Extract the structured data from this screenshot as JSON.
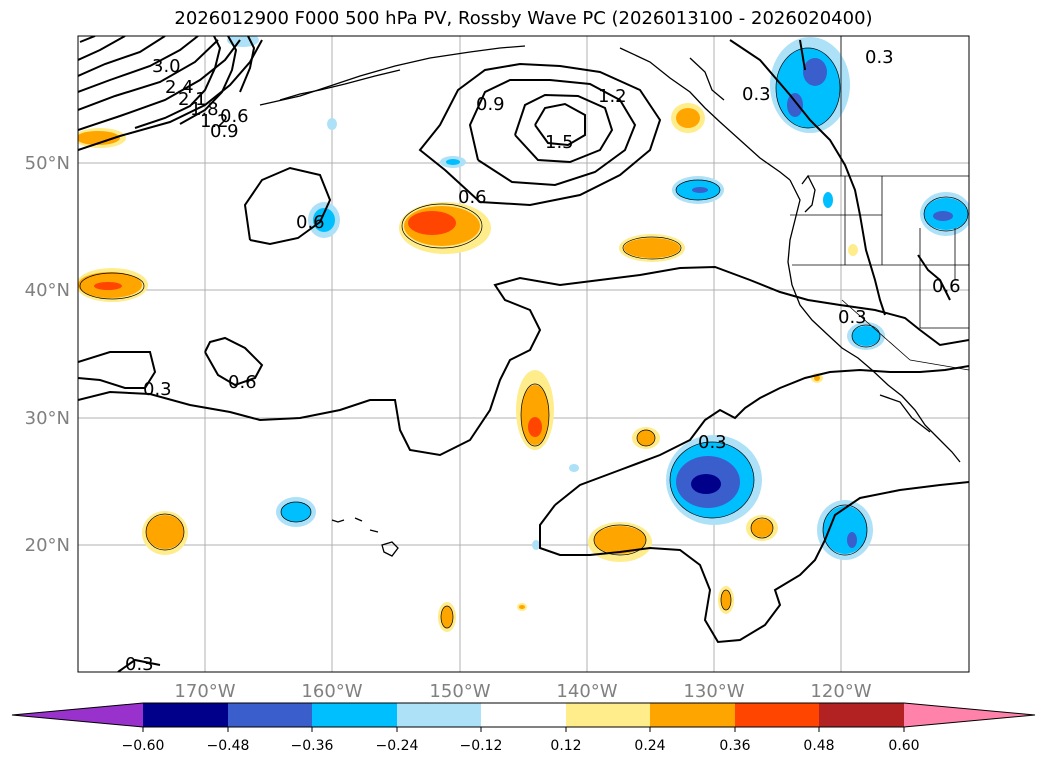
{
  "title": "2026012900 F000 500 hPa PV, Rossby Wave PC (2026013100 - 2026020400)",
  "latitude_labels": [
    "50°N",
    "40°N",
    "30°N",
    "20°N"
  ],
  "longitude_labels": [
    "170°W",
    "160°W",
    "150°W",
    "140°W",
    "130°W",
    "120°W"
  ],
  "colorbar": {
    "ticks": [
      "−0.60",
      "−0.48",
      "−0.36",
      "−0.24",
      "−0.12",
      "0.12",
      "0.24",
      "0.36",
      "0.48",
      "0.60"
    ],
    "colors": [
      "#9932CC",
      "#00008B",
      "#3A5FCD",
      "#00BFFF",
      "#ADE1F7",
      "#FFFFFF",
      "#FFEC8B",
      "#FFA500",
      "#FF4500",
      "#B22222",
      "#FF82AB"
    ]
  },
  "contour_labels": [
    "3.0",
    "2.4",
    "2.1",
    "1.8",
    "1.2",
    "0.9",
    "0.6",
    "0.9",
    "1.2",
    "1.5",
    "0.6",
    "0.6",
    "0.3",
    "0.6",
    "0.3",
    "0.3",
    "0.3",
    "0.6",
    "0.3",
    "0.3"
  ]
}
